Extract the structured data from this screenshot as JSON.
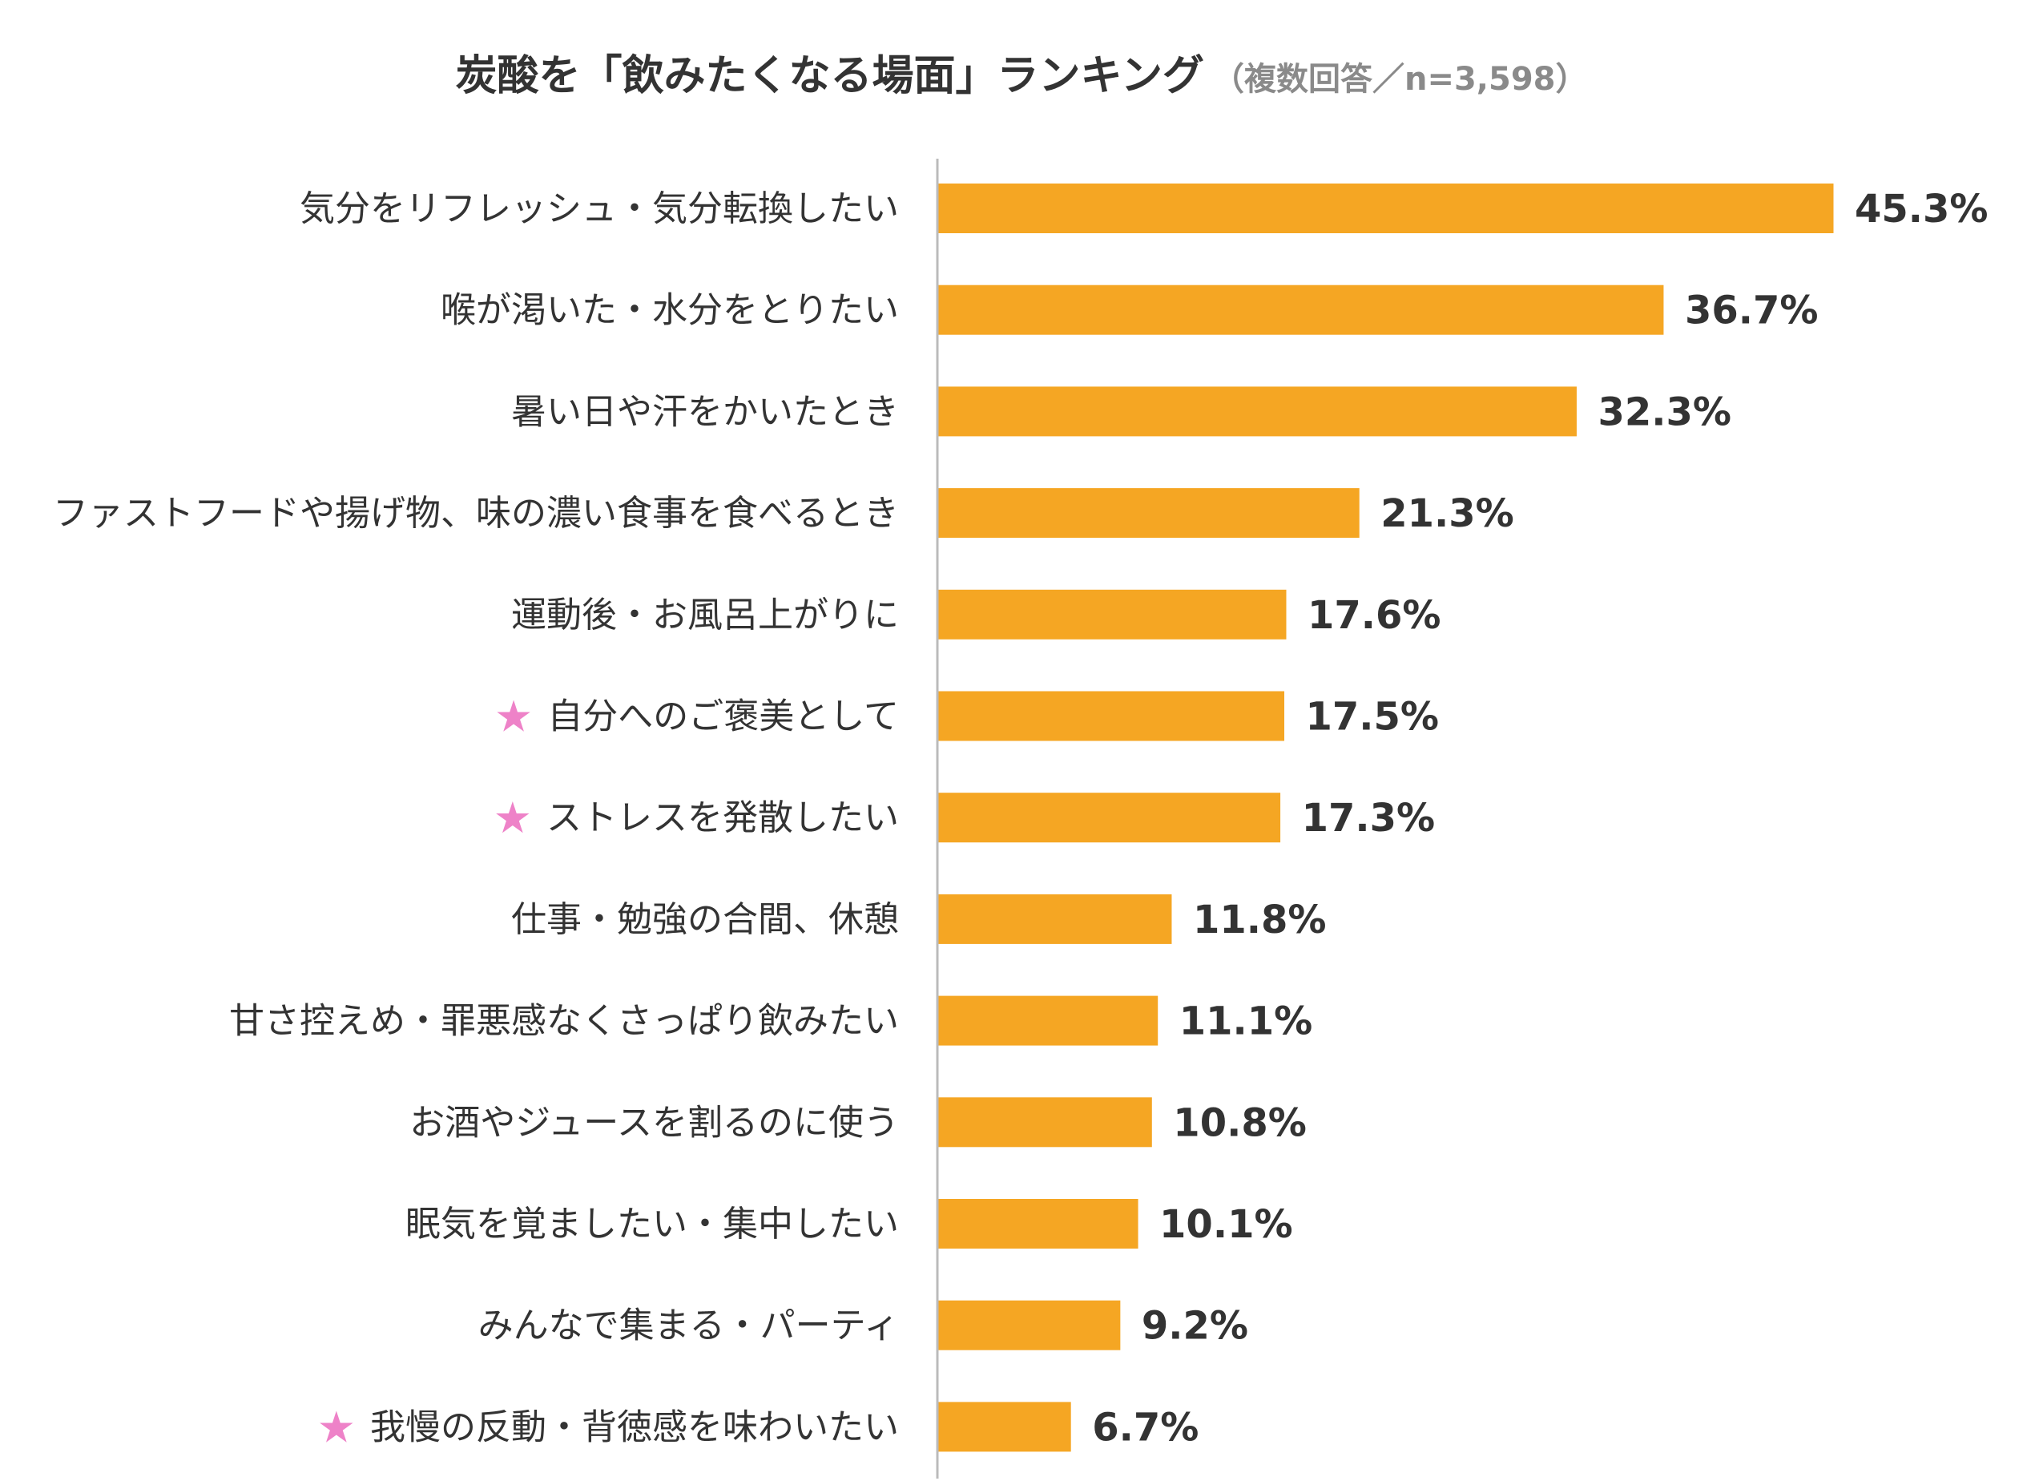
{
  "chart_data": {
    "type": "bar",
    "orientation": "horizontal",
    "title": "炭酸を「飲みたくなる場面」ランキング",
    "subtitle": "（複数回答／n=3,598）",
    "categories": [
      "気分をリフレッシュ・気分転換したい",
      "喉が渇いた・水分をとりたい",
      "暑い日や汗をかいたとき",
      "ファストフードや揚げ物、味の濃い食事を食べるとき",
      "運動後・お風呂上がりに",
      "自分へのご褒美として",
      "ストレスを発散したい",
      "仕事・勉強の合間、休憩",
      "甘さ控えめ・罪悪感なくさっぱり飲みたい",
      "お酒やジュースを割るのに使う",
      "眠気を覚ましたい・集中したい",
      "みんなで集まる・パーティ",
      "我慢の反動・背徳感を味わいたい"
    ],
    "values": [
      45.3,
      36.7,
      32.3,
      21.3,
      17.6,
      17.5,
      17.3,
      11.8,
      11.1,
      10.8,
      10.1,
      9.2,
      6.7
    ],
    "value_labels": [
      "45.3%",
      "36.7%",
      "32.3%",
      "21.3%",
      "17.6%",
      "17.5%",
      "17.3%",
      "11.8%",
      "11.1%",
      "10.8%",
      "10.1%",
      "9.2%",
      "6.7%"
    ],
    "starred": [
      false,
      false,
      false,
      false,
      false,
      true,
      true,
      false,
      false,
      false,
      false,
      false,
      true
    ],
    "star_symbol": "★",
    "xlim": [
      0,
      50
    ],
    "grid": false,
    "legend": "none",
    "colors": {
      "bar": "#F5A623",
      "star": "#EE82C8",
      "axis": "#BBBBBB",
      "text": "#333333",
      "subtitle": "#8A8A8A"
    }
  }
}
